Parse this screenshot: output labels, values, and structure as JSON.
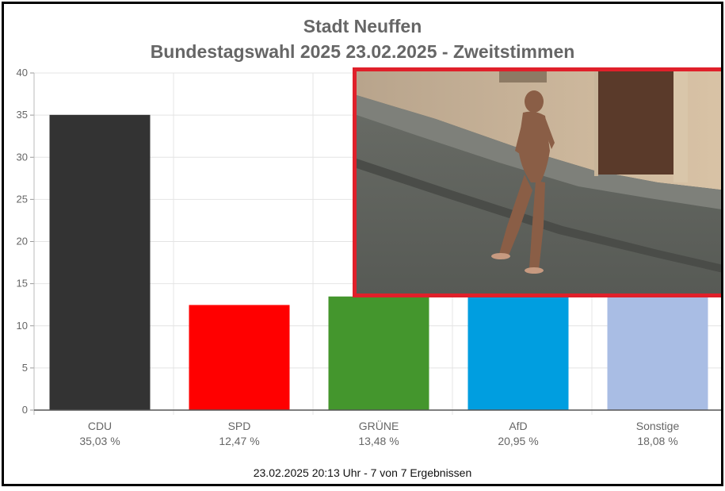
{
  "chart_data": {
    "type": "bar",
    "title": "Stadt Neuffen",
    "subtitle": "Bundestagswahl 2025 23.02.2025  - Zweitstimmen",
    "categories": [
      "CDU",
      "SPD",
      "GRÜNE",
      "AfD",
      "Sonstige"
    ],
    "values": [
      35.03,
      12.47,
      13.48,
      20.95,
      18.08
    ],
    "value_labels": [
      "35,03 %",
      "12,47 %",
      "13,48 %",
      "20,95 %",
      "18,08 %"
    ],
    "colors": [
      "#333333",
      "#ff0000",
      "#44962d",
      "#009ee0",
      "#a9bde4"
    ],
    "ylim": [
      0,
      40
    ],
    "yticks": [
      0,
      5,
      10,
      15,
      20,
      25,
      30,
      35,
      40
    ],
    "ytick_labels": [
      "0",
      "5",
      "10",
      "15",
      "20",
      "25",
      "30",
      "35",
      "40"
    ],
    "grid": true,
    "xlabel": "",
    "ylabel": "",
    "footnote": "23.02.2025 20:13 Uhr - 7 von 7 Ergebnissen"
  },
  "overlay_photo": {
    "icon": "street-photo-icon",
    "border_color": "#e0202a"
  }
}
